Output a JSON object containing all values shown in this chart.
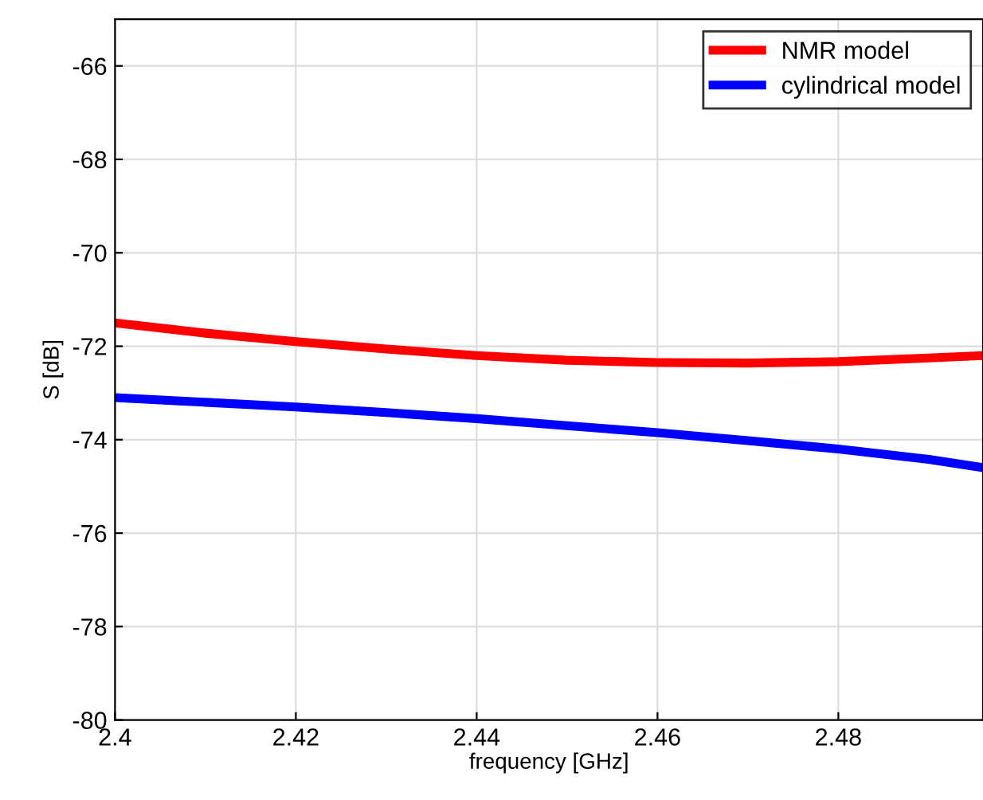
{
  "chart_data": {
    "type": "line",
    "xlabel": "frequency [GHz]",
    "ylabel": "S [dB]",
    "xlim": [
      2.4,
      2.496
    ],
    "ylim": [
      -80,
      -65
    ],
    "xticks": [
      2.4,
      2.42,
      2.44,
      2.46,
      2.48
    ],
    "yticks": [
      -80,
      -78,
      -76,
      -74,
      -72,
      -70,
      -68,
      -66
    ],
    "grid": true,
    "legend": "top right",
    "line_style": "solid",
    "series": [
      {
        "name": "NMR model",
        "color": "#ff0000",
        "x": [
          2.4,
          2.41,
          2.42,
          2.43,
          2.44,
          2.45,
          2.46,
          2.47,
          2.48,
          2.49,
          2.496
        ],
        "values": [
          -71.5,
          -71.72,
          -71.9,
          -72.06,
          -72.2,
          -72.3,
          -72.35,
          -72.36,
          -72.33,
          -72.25,
          -72.2
        ]
      },
      {
        "name": "cylindrical model",
        "color": "#0000ff",
        "x": [
          2.4,
          2.41,
          2.42,
          2.43,
          2.44,
          2.45,
          2.46,
          2.47,
          2.48,
          2.49,
          2.496
        ],
        "values": [
          -73.1,
          -73.2,
          -73.3,
          -73.42,
          -73.55,
          -73.7,
          -73.85,
          -74.02,
          -74.2,
          -74.42,
          -74.6
        ]
      }
    ]
  }
}
